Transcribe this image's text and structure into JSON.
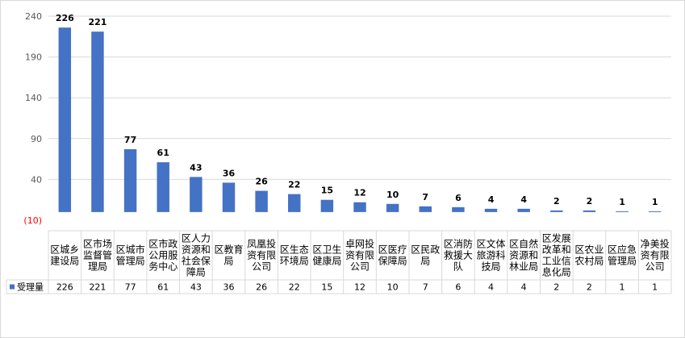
{
  "chart_data": {
    "type": "bar",
    "categories": [
      "区城乡建设局",
      "区市场监督管理局",
      "区城市管理局",
      "区市政公用服务中心",
      "区人力资源和社会保障局",
      "区教育局",
      "凤凰投资有限公司",
      "区生态环境局",
      "区卫生健康局",
      "卓网投资有限公司",
      "区医疗保障局",
      "区民政局",
      "区消防救援大队",
      "区文体旅游科技局",
      "区自然资源和林业局",
      "区发展改革和工业信息化局",
      "区农业农村局",
      "区应急管理局",
      "净美投资有限公司"
    ],
    "category_lines": [
      [
        "区城乡",
        "建设局"
      ],
      [
        "区市场",
        "监督管",
        "理局"
      ],
      [
        "区城市",
        "管理局"
      ],
      [
        "区市政",
        "公用服",
        "务中心"
      ],
      [
        "区人力",
        "资源和",
        "社会保",
        "障局"
      ],
      [
        "区教育",
        "局"
      ],
      [
        "凤凰投",
        "资有限",
        "公司"
      ],
      [
        "区生态",
        "环境局"
      ],
      [
        "区卫生",
        "健康局"
      ],
      [
        "卓网投",
        "资有限",
        "公司"
      ],
      [
        "区医疗",
        "保障局"
      ],
      [
        "区民政",
        "局"
      ],
      [
        "区消防",
        "救援大",
        "队"
      ],
      [
        "区文体",
        "旅游科",
        "技局"
      ],
      [
        "区自然",
        "资源和",
        "林业局"
      ],
      [
        "区发展",
        "改革和",
        "工业信",
        "息化局"
      ],
      [
        "区农业",
        "农村局"
      ],
      [
        "区应急",
        "管理局"
      ],
      [
        "净美投",
        "资有限",
        "公司"
      ]
    ],
    "series": [
      {
        "name": "受理量",
        "values": [
          226,
          221,
          77,
          61,
          43,
          36,
          26,
          22,
          15,
          12,
          10,
          7,
          6,
          4,
          4,
          2,
          2,
          1,
          1
        ]
      }
    ],
    "y_ticks": [
      {
        "value": 240,
        "label": "240"
      },
      {
        "value": 190,
        "label": "190"
      },
      {
        "value": 140,
        "label": "140"
      },
      {
        "value": 90,
        "label": "90"
      },
      {
        "value": 40,
        "label": "40"
      },
      {
        "value": -10,
        "label": "(10)"
      }
    ],
    "ylim": [
      -10,
      240
    ],
    "grid": true,
    "legend": "in data table",
    "data_table": true,
    "colors": {
      "bar": "#4472c4",
      "grid": "#d9d9d9",
      "axis_text": "#595959",
      "negative_tick": "#ff0000",
      "label": "#000000"
    }
  }
}
